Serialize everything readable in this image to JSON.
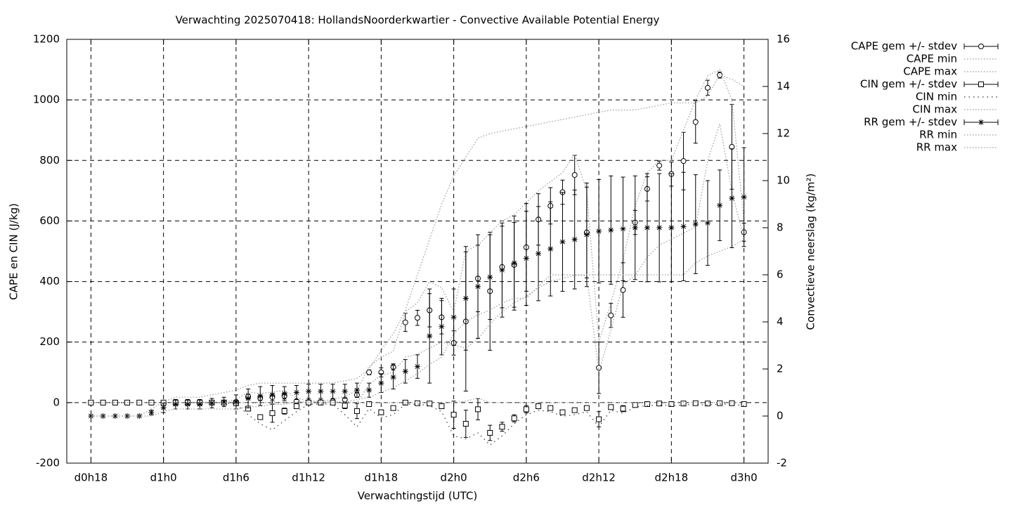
{
  "chart_data": {
    "type": "errorbar-line",
    "title": "Verwachting 2025070418: HollandsNoorderkwartier - Convective Available Potential Energy",
    "xlabel": "Verwachtingstijd (UTC)",
    "ylabel": "CAPE en CIN (J/kg)",
    "y2label": "Convectieve neerslag (kg/m²)",
    "grid": true,
    "legend": "outside-top-right",
    "xlim": [
      16,
      74
    ],
    "ylim": [
      -200,
      1200
    ],
    "y2lim": [
      -2,
      16
    ],
    "xticks": [
      {
        "value": 18,
        "label": "d0h18"
      },
      {
        "value": 24,
        "label": "d1h0"
      },
      {
        "value": 30,
        "label": "d1h6"
      },
      {
        "value": 36,
        "label": "d1h12"
      },
      {
        "value": 42,
        "label": "d1h18"
      },
      {
        "value": 48,
        "label": "d2h0"
      },
      {
        "value": 54,
        "label": "d2h6"
      },
      {
        "value": 60,
        "label": "d2h12"
      },
      {
        "value": 66,
        "label": "d2h18"
      },
      {
        "value": 72,
        "label": "d3h0"
      }
    ],
    "yticks": [
      -200,
      0,
      200,
      400,
      600,
      800,
      1000,
      1200
    ],
    "y2ticks": [
      -2,
      0,
      2,
      4,
      6,
      8,
      10,
      12,
      14,
      16
    ],
    "x": [
      18,
      19,
      20,
      21,
      22,
      23,
      24,
      25,
      26,
      27,
      28,
      29,
      30,
      31,
      32,
      33,
      34,
      35,
      36,
      37,
      38,
      39,
      40,
      41,
      42,
      43,
      44,
      45,
      46,
      47,
      48,
      49,
      50,
      51,
      52,
      53,
      54,
      55,
      56,
      57,
      58,
      59,
      60,
      61,
      62,
      63,
      64,
      65,
      66,
      67,
      68,
      69,
      70,
      71,
      72
    ],
    "series": [
      {
        "name": "CAPE gem +/- stdev",
        "style": "errorbars",
        "marker": "circle",
        "color": "#000000",
        "values": [
          0,
          0,
          0,
          0,
          0,
          0,
          0,
          0,
          0,
          0,
          0,
          0,
          2,
          20,
          15,
          18,
          22,
          5,
          2,
          2,
          5,
          10,
          25,
          100,
          100,
          118,
          265,
          280,
          305,
          282,
          197,
          268,
          410,
          368,
          448,
          455,
          513,
          605,
          650,
          695,
          752,
          562,
          115,
          288,
          372,
          595,
          706,
          783,
          755,
          798,
          927,
          1040,
          1082,
          845,
          563
        ],
        "errors": [
          0,
          0,
          0,
          0,
          0,
          0,
          0,
          0,
          0,
          0,
          0,
          0,
          0,
          8,
          8,
          12,
          10,
          4,
          2,
          2,
          3,
          5,
          8,
          8,
          15,
          10,
          30,
          25,
          55,
          55,
          40,
          230,
          110,
          195,
          135,
          140,
          145,
          85,
          60,
          40,
          65,
          150,
          85,
          40,
          90,
          40,
          40,
          15,
          40,
          95,
          70,
          25,
          10,
          140,
          30
        ]
      },
      {
        "name": "CAPE min",
        "style": "dotted",
        "color": "#999999",
        "values": [
          0,
          0,
          0,
          0,
          0,
          0,
          0,
          0,
          0,
          0,
          0,
          0,
          0,
          0,
          0,
          0,
          0,
          0,
          0,
          0,
          0,
          0,
          0,
          60,
          90,
          100,
          150,
          160,
          180,
          200,
          190,
          180,
          210,
          260,
          300,
          330,
          350,
          380,
          400,
          410,
          420,
          420,
          100,
          240,
          390,
          420,
          480,
          520,
          540,
          560,
          580,
          800,
          920,
          700,
          540
        ]
      },
      {
        "name": "CAPE max",
        "style": "dotted",
        "color": "#999999",
        "values": [
          0,
          0,
          0,
          0,
          0,
          0,
          0,
          0,
          0,
          0,
          0,
          0,
          10,
          35,
          30,
          35,
          40,
          15,
          5,
          5,
          10,
          20,
          40,
          120,
          150,
          170,
          300,
          330,
          400,
          380,
          300,
          500,
          520,
          560,
          600,
          620,
          660,
          700,
          730,
          760,
          820,
          700,
          200,
          330,
          470,
          650,
          760,
          800,
          800,
          900,
          1000,
          1080,
          1100,
          1000,
          600
        ]
      },
      {
        "name": "CIN gem +/- stdev",
        "style": "errorbars",
        "marker": "square",
        "color": "#000000",
        "values": [
          0,
          0,
          0,
          0,
          0,
          0,
          0,
          0,
          0,
          0,
          0,
          0,
          -2,
          -20,
          -48,
          -35,
          -28,
          -12,
          0,
          0,
          0,
          -10,
          -28,
          -5,
          -32,
          -18,
          0,
          -2,
          -3,
          -12,
          -40,
          -70,
          -22,
          -100,
          -80,
          -52,
          -22,
          -12,
          -18,
          -32,
          -25,
          -18,
          -55,
          -15,
          -20,
          -8,
          -5,
          -3,
          -5,
          -3,
          -2,
          -3,
          -2,
          -2,
          -5
        ],
        "errors": [
          0,
          0,
          0,
          0,
          0,
          0,
          0,
          0,
          0,
          0,
          0,
          0,
          2,
          5,
          8,
          30,
          10,
          5,
          2,
          2,
          2,
          10,
          25,
          5,
          8,
          5,
          2,
          2,
          2,
          5,
          45,
          45,
          35,
          25,
          15,
          12,
          12,
          5,
          5,
          5,
          5,
          5,
          25,
          5,
          10,
          3,
          3,
          2,
          2,
          2,
          2,
          2,
          2,
          2,
          3
        ]
      },
      {
        "name": "CIN min",
        "style": "dotted",
        "color": "#333333",
        "values": [
          0,
          0,
          0,
          0,
          0,
          0,
          0,
          0,
          0,
          0,
          0,
          0,
          -5,
          -40,
          -70,
          -90,
          -60,
          -30,
          -5,
          -5,
          -5,
          -40,
          -80,
          -20,
          -50,
          -40,
          -5,
          -5,
          -10,
          -30,
          -110,
          -120,
          -100,
          -140,
          -110,
          -70,
          -40,
          -25,
          -30,
          -45,
          -40,
          -30,
          -80,
          -25,
          -35,
          -15,
          -10,
          -8,
          -10,
          -8,
          -5,
          -8,
          -5,
          -5,
          -10
        ]
      },
      {
        "name": "CIN max",
        "style": "dotted",
        "color": "#999999",
        "values": [
          0,
          0,
          0,
          0,
          0,
          0,
          0,
          0,
          0,
          0,
          0,
          0,
          0,
          0,
          0,
          0,
          0,
          0,
          0,
          0,
          0,
          0,
          0,
          0,
          0,
          0,
          0,
          0,
          0,
          0,
          0,
          5,
          15,
          0,
          0,
          0,
          0,
          0,
          0,
          0,
          0,
          0,
          0,
          0,
          0,
          0,
          0,
          0,
          0,
          0,
          0,
          0,
          0,
          0,
          0
        ]
      },
      {
        "name": "RR gem +/- stdev",
        "style": "errorbars",
        "marker": "asterisk",
        "color": "#000000",
        "axis": "y2",
        "values": [
          0,
          0,
          0,
          0,
          0,
          0.15,
          0.35,
          0.5,
          0.5,
          0.5,
          0.55,
          0.6,
          0.6,
          0.75,
          0.85,
          0.9,
          0.95,
          1.0,
          1.05,
          1.05,
          1.05,
          1.05,
          1.1,
          1.1,
          1.4,
          1.65,
          1.9,
          2.1,
          3.4,
          3.8,
          4.2,
          5.0,
          5.5,
          5.9,
          6.2,
          6.5,
          6.7,
          6.9,
          7.1,
          7.4,
          7.5,
          7.7,
          7.85,
          7.9,
          7.95,
          8.0,
          8.0,
          8.0,
          8.0,
          8.05,
          8.15,
          8.2,
          8.95,
          9.25,
          9.3
        ],
        "errors": [
          0,
          0,
          0,
          0,
          0,
          0.1,
          0.2,
          0.2,
          0.2,
          0.2,
          0.2,
          0.2,
          0.3,
          0.4,
          0.4,
          0.4,
          0.3,
          0.3,
          0.3,
          0.3,
          0.3,
          0.3,
          0.3,
          0.3,
          0.4,
          0.5,
          0.5,
          0.5,
          2.0,
          1.2,
          1.2,
          2.2,
          2.2,
          1.8,
          2.0,
          2.0,
          2.0,
          2.0,
          2.0,
          2.1,
          2.1,
          2.2,
          2.2,
          2.3,
          2.2,
          2.2,
          2.3,
          2.3,
          2.3,
          2.3,
          2.1,
          1.8,
          1.5,
          2.1,
          2.1
        ]
      },
      {
        "name": "RR min",
        "style": "dotted",
        "color": "#999999",
        "axis": "y2",
        "values": [
          0,
          0,
          0,
          0,
          0,
          0,
          0.2,
          0.3,
          0.3,
          0.3,
          0.3,
          0.3,
          0.3,
          0.4,
          0.4,
          0.5,
          0.5,
          0.6,
          0.6,
          0.6,
          0.6,
          0.6,
          0.7,
          0.8,
          1.0,
          1.2,
          1.5,
          1.8,
          2.2,
          2.5,
          3.5,
          4.0,
          4.3,
          4.5,
          4.8,
          5.0,
          5.0,
          5.5,
          6.0,
          6.0,
          6.0,
          6.0,
          6.0,
          6.0,
          6.0,
          6.0,
          6.0,
          6.0,
          6.0,
          6.0,
          6.5,
          6.8,
          7.0,
          7.2,
          7.5
        ]
      },
      {
        "name": "RR max",
        "style": "dotted",
        "color": "#999999",
        "axis": "y2",
        "values": [
          0,
          0,
          0,
          0,
          0,
          0.3,
          0.6,
          0.8,
          0.8,
          0.8,
          0.9,
          1.0,
          1.1,
          1.3,
          1.4,
          1.4,
          1.4,
          1.4,
          1.4,
          1.4,
          1.4,
          1.5,
          1.6,
          2.0,
          2.8,
          3.5,
          4.5,
          6.0,
          7.5,
          9.0,
          10.2,
          11.0,
          11.8,
          12.0,
          12.1,
          12.2,
          12.3,
          12.4,
          12.5,
          12.6,
          12.7,
          12.8,
          12.9,
          13.0,
          13.0,
          13.0,
          13.1,
          13.2,
          13.3,
          13.3,
          13.3,
          13.6,
          14.5,
          14.3,
          14.0
        ]
      }
    ]
  }
}
